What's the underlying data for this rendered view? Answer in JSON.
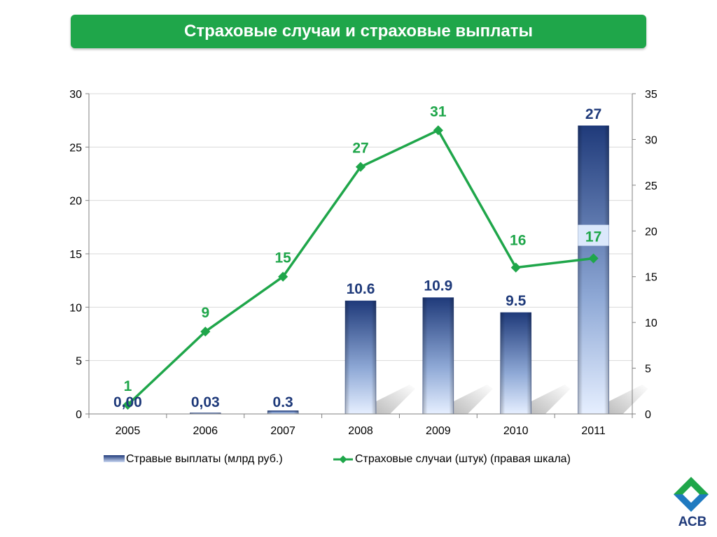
{
  "title": "Страховые случаи и страховые выплаты",
  "logo": {
    "text": "АСВ",
    "icon": "asv-logo-icon"
  },
  "colors": {
    "title_bg": "#1fa64a",
    "line": "#1fa64a",
    "bar_dark": "#1f3a7a",
    "bar_light": "#dbe8fb",
    "bar_label": "#1f3a7a",
    "line_label": "#1fa64a"
  },
  "chart_data": {
    "type": "bar",
    "categories": [
      "2005",
      "2006",
      "2007",
      "2008",
      "2009",
      "2010",
      "2011"
    ],
    "series": [
      {
        "name": "Стравые выплаты (млрд руб.)",
        "type": "bar",
        "axis": "left",
        "values": [
          0,
          0.03,
          0.3,
          10.6,
          10.9,
          9.5,
          27
        ],
        "labels": [
          "0,00",
          "0,03",
          "0.3",
          "10.6",
          "10.9",
          "9.5",
          "27"
        ]
      },
      {
        "name": "Страховые случаи (штук) (правая шкала)",
        "type": "line",
        "axis": "right",
        "values": [
          1,
          9,
          15,
          27,
          31,
          16,
          17
        ],
        "labels": [
          "1",
          "9",
          "15",
          "27",
          "31",
          "16",
          "17"
        ]
      }
    ],
    "y_left": {
      "range": [
        0,
        30
      ],
      "ticks": [
        "0",
        "5",
        "10",
        "15",
        "20",
        "25",
        "30"
      ]
    },
    "y_right": {
      "range": [
        0,
        35
      ],
      "ticks": [
        "0",
        "5",
        "10",
        "15",
        "20",
        "25",
        "30",
        "35"
      ]
    },
    "grid": true,
    "legend": "bottom"
  }
}
